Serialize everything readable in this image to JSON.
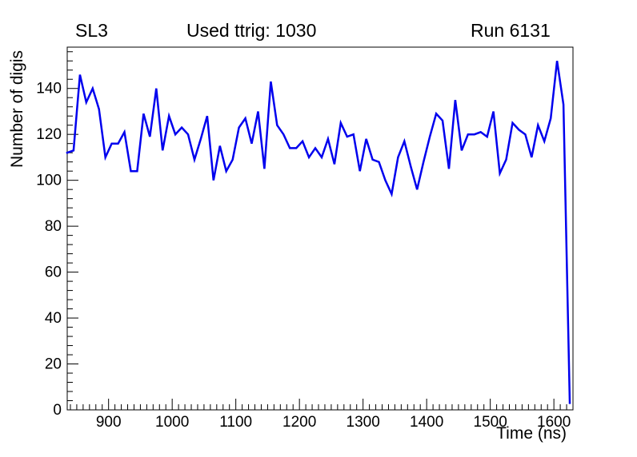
{
  "header": {
    "title_left": "SL3",
    "title_center": "Used ttrig: 1030",
    "title_right": "Run 6131"
  },
  "axes": {
    "ylabel": "Number of digis",
    "xlabel": "Time (ns)"
  },
  "chart_data": {
    "type": "line",
    "title": "Used ttrig: 1030",
    "subtitle_left": "SL3",
    "subtitle_right": "Run 6131",
    "xlabel": "Time (ns)",
    "ylabel": "Number of digis",
    "xlim": [
      835,
      1630
    ],
    "ylim": [
      0,
      158
    ],
    "x_major_ticks": [
      900,
      1000,
      1100,
      1200,
      1300,
      1400,
      1500,
      1600
    ],
    "x_minor_step": 10,
    "y_major_ticks": [
      0,
      20,
      40,
      60,
      80,
      100,
      120,
      140
    ],
    "y_minor_step": 4,
    "grid": false,
    "legend": "none",
    "line_color": "#0000ee",
    "line_width": 2.5,
    "series": [
      {
        "name": "digis-vs-time",
        "x": [
          835,
          845,
          855,
          865,
          875,
          885,
          895,
          905,
          915,
          925,
          935,
          945,
          955,
          965,
          975,
          985,
          995,
          1005,
          1015,
          1025,
          1035,
          1045,
          1055,
          1065,
          1075,
          1085,
          1095,
          1105,
          1115,
          1125,
          1135,
          1145,
          1155,
          1165,
          1175,
          1185,
          1195,
          1205,
          1215,
          1225,
          1235,
          1245,
          1255,
          1265,
          1275,
          1285,
          1295,
          1305,
          1315,
          1325,
          1335,
          1345,
          1355,
          1365,
          1375,
          1385,
          1395,
          1405,
          1415,
          1425,
          1435,
          1445,
          1455,
          1465,
          1475,
          1485,
          1495,
          1505,
          1515,
          1525,
          1535,
          1545,
          1555,
          1565,
          1575,
          1585,
          1595,
          1605,
          1615,
          1625
        ],
        "y": [
          112,
          113,
          146,
          134,
          140,
          131,
          110,
          116,
          116,
          121,
          104,
          104,
          129,
          119,
          140,
          113,
          128,
          120,
          123,
          120,
          109,
          118,
          128,
          100,
          115,
          104,
          109,
          123,
          127,
          116,
          130,
          105,
          143,
          124,
          120,
          114,
          114,
          117,
          110,
          114,
          110,
          118,
          107,
          125,
          119,
          120,
          104,
          118,
          109,
          108,
          100,
          94,
          110,
          117,
          106,
          96,
          108,
          119,
          129,
          126,
          105,
          135,
          113,
          120,
          120,
          121,
          119,
          130,
          103,
          109,
          125,
          122,
          120,
          110,
          124,
          117,
          127,
          152,
          133,
          3
        ]
      }
    ]
  }
}
